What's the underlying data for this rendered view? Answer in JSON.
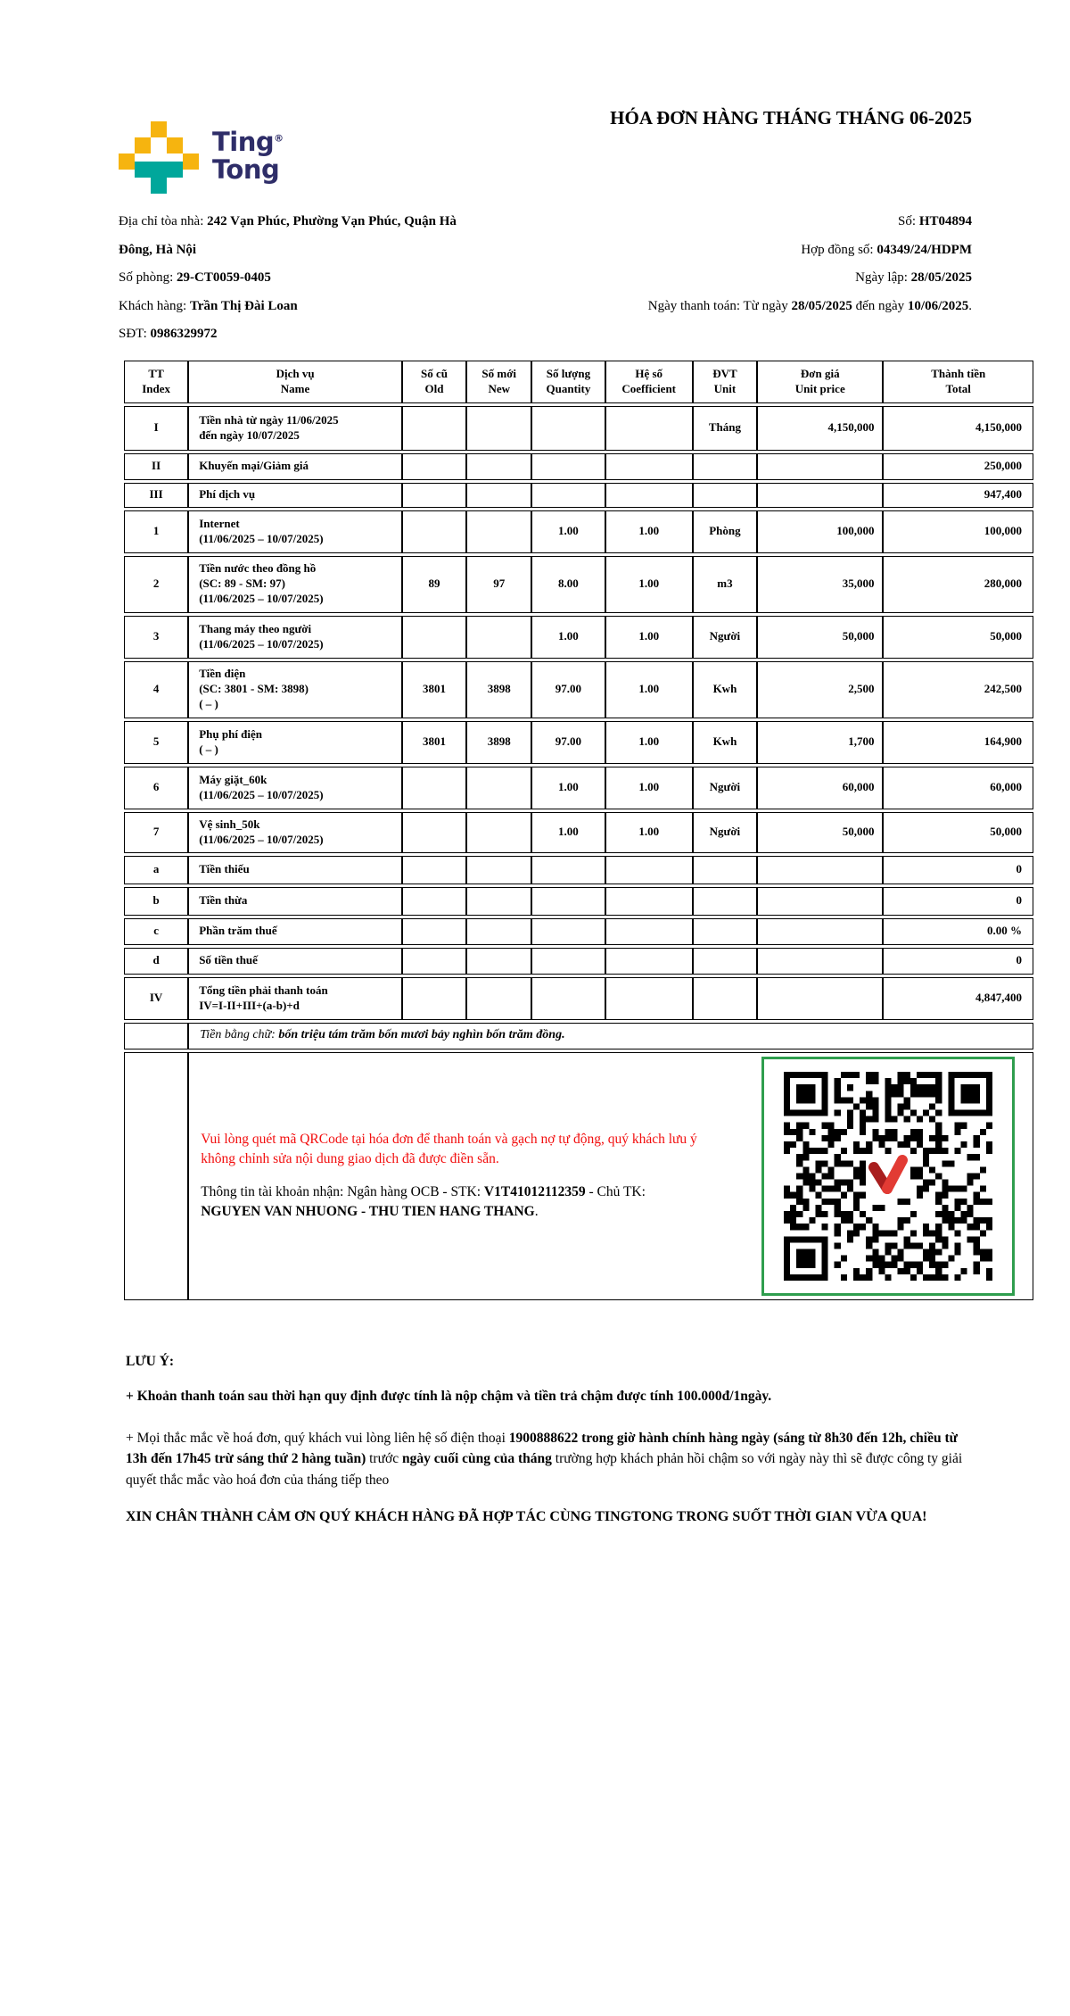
{
  "colors": {
    "brand_yellow": "#F6B40F",
    "brand_teal": "#00A79B",
    "brand_navy": "#2E2D68",
    "alert_red": "#F20D0D",
    "qr_border_green": "#2F9E4E",
    "qr_v_red": "#E23B34",
    "qr_v_dark_red": "#A81E1E"
  },
  "logo": {
    "text_line1": "Ting",
    "text_line2": "Tong",
    "registered_mark": "®"
  },
  "title": "HÓA ĐƠN HÀNG THÁNG THÁNG 06-2025",
  "info_left": [
    [
      {
        "t": "Địa chỉ tòa nhà: "
      },
      {
        "t": "242 Vạn Phúc, Phường Vạn Phúc, Quận Hà Đông, Hà Nội",
        "b": true
      }
    ],
    [
      {
        "t": "Số phòng: "
      },
      {
        "t": "29-CT0059-0405",
        "b": true
      }
    ],
    [
      {
        "t": "Khách hàng: "
      },
      {
        "t": "Trần Thị Đài Loan",
        "b": true
      }
    ],
    [
      {
        "t": "SĐT: "
      },
      {
        "t": "0986329972",
        "b": true
      }
    ]
  ],
  "info_right": [
    [
      {
        "t": "Số: "
      },
      {
        "t": "HT04894",
        "b": true
      }
    ],
    [
      {
        "t": "Hợp đồng số: "
      },
      {
        "t": "04349/24/HDPM",
        "b": true
      }
    ],
    [
      {
        "t": "Ngày lập: "
      },
      {
        "t": "28/05/2025",
        "b": true
      }
    ],
    [
      {
        "t": "Ngày thanh toán: Từ ngày "
      },
      {
        "t": "28/05/2025",
        "b": true
      },
      {
        "t": " đến ngày "
      },
      {
        "t": "10/06/2025",
        "b": true
      },
      {
        "t": "."
      }
    ]
  ],
  "table": {
    "headers": [
      [
        "TT",
        "Index"
      ],
      [
        "Dịch vụ",
        "Name"
      ],
      [
        "Số cũ",
        "Old"
      ],
      [
        "Số mới",
        "New"
      ],
      [
        "Số lượng",
        "Quantity"
      ],
      [
        "Hệ số",
        "Coefficient"
      ],
      [
        "ĐVT",
        "Unit"
      ],
      [
        "Đơn giá",
        "Unit price"
      ],
      [
        "Thành tiền",
        "Total"
      ]
    ],
    "rows": [
      {
        "tt": "I",
        "name": [
          "Tiền nhà từ ngày 11/06/2025",
          "đến ngày 10/07/2025"
        ],
        "old": "",
        "new": "",
        "qty": "",
        "coef": "",
        "unit": "Tháng",
        "price": "4,150,000",
        "total": "4,150,000"
      },
      {
        "tt": "II",
        "name": [
          "Khuyến mại/Giảm giá"
        ],
        "old": "",
        "new": "",
        "qty": "",
        "coef": "",
        "unit": "",
        "price": "",
        "total": "250,000"
      },
      {
        "tt": "III",
        "name": [
          "Phí dịch vụ"
        ],
        "old": "",
        "new": "",
        "qty": "",
        "coef": "",
        "unit": "",
        "price": "",
        "total": "947,400"
      },
      {
        "tt": "1",
        "name": [
          "Internet",
          "(11/06/2025 – 10/07/2025)"
        ],
        "old": "",
        "new": "",
        "qty": "1.00",
        "coef": "1.00",
        "unit": "Phòng",
        "price": "100,000",
        "total": "100,000"
      },
      {
        "tt": "2",
        "name": [
          "Tiền nước theo đồng hồ",
          "(SC: 89 - SM: 97)",
          "(11/06/2025 – 10/07/2025)"
        ],
        "old": "89",
        "new": "97",
        "qty": "8.00",
        "coef": "1.00",
        "unit": "m3",
        "price": "35,000",
        "total": "280,000"
      },
      {
        "tt": "3",
        "name": [
          "Thang máy theo người",
          "(11/06/2025 – 10/07/2025)"
        ],
        "old": "",
        "new": "",
        "qty": "1.00",
        "coef": "1.00",
        "unit": "Người",
        "price": "50,000",
        "total": "50,000"
      },
      {
        "tt": "4",
        "name": [
          "Tiền điện",
          "(SC: 3801 - SM: 3898)",
          "( – )"
        ],
        "old": "3801",
        "new": "3898",
        "qty": "97.00",
        "coef": "1.00",
        "unit": "Kwh",
        "price": "2,500",
        "total": "242,500"
      },
      {
        "tt": "5",
        "name": [
          "Phụ phí điện",
          "( – )"
        ],
        "old": "3801",
        "new": "3898",
        "qty": "97.00",
        "coef": "1.00",
        "unit": "Kwh",
        "price": "1,700",
        "total": "164,900"
      },
      {
        "tt": "6",
        "name": [
          "Máy giặt_60k",
          "(11/06/2025 – 10/07/2025)"
        ],
        "old": "",
        "new": "",
        "qty": "1.00",
        "coef": "1.00",
        "unit": "Người",
        "price": "60,000",
        "total": "60,000"
      },
      {
        "tt": "7",
        "name": [
          "Vệ sinh_50k",
          "(11/06/2025 – 10/07/2025)"
        ],
        "old": "",
        "new": "",
        "qty": "1.00",
        "coef": "1.00",
        "unit": "Người",
        "price": "50,000",
        "total": "50,000"
      },
      {
        "tt": "a",
        "name": [
          "Tiền thiếu"
        ],
        "old": "",
        "new": "",
        "qty": "",
        "coef": "",
        "unit": "",
        "price": "",
        "total": "0"
      },
      {
        "tt": "b",
        "name": [
          "Tiền thừa"
        ],
        "old": "",
        "new": "",
        "qty": "",
        "coef": "",
        "unit": "",
        "price": "",
        "total": "0"
      },
      {
        "tt": "c",
        "name": [
          "Phần trăm thuế"
        ],
        "old": "",
        "new": "",
        "qty": "",
        "coef": "",
        "unit": "",
        "price": "",
        "total": "0.00 %"
      },
      {
        "tt": "d",
        "name": [
          "Số tiền thuế"
        ],
        "old": "",
        "new": "",
        "qty": "",
        "coef": "",
        "unit": "",
        "price": "",
        "total": "0"
      },
      {
        "tt": "IV",
        "name": [
          "Tổng tiền phải thanh toán",
          "IV=I-II+III+(a-b)+d"
        ],
        "old": "",
        "new": "",
        "qty": "",
        "coef": "",
        "unit": "",
        "price": "",
        "total": "4,847,400"
      }
    ],
    "amount_in_words_label": "Tiền bằng chữ: ",
    "amount_in_words_value": "bốn triệu tám trăm bốn mươi bảy nghìn bốn trăm đồng."
  },
  "payment": {
    "qr_note_red": "Vui lòng quét mã QRCode tại hóa đơn để thanh toán và gạch nợ tự động, quý khách lưu ý không chỉnh sửa nội dung giao dịch đã được điền sẵn.",
    "account_runs": [
      {
        "t": "Thông tin tài khoản nhận: Ngân hàng OCB - STK: "
      },
      {
        "t": "V1T41012112359",
        "b": true
      },
      {
        "t": " - Chủ TK:"
      },
      {
        "br": true
      },
      {
        "t": "NGUYEN VAN NHUONG - THU TIEN HANG THANG",
        "b": true
      },
      {
        "t": "."
      }
    ]
  },
  "notes": {
    "heading": "LƯU Ý:",
    "bullet1": "+ Khoản thanh toán sau thời hạn quy định được tính là nộp chậm và tiền trả chậm được tính 100.000đ/1ngày.",
    "bullet2_runs": [
      {
        "t": "+ Mọi thắc mắc về hoá đơn, quý khách vui lòng liên hệ số điện thoại "
      },
      {
        "t": "1900888622 trong giờ hành chính hàng ngày (sáng từ 8h30 đến 12h, chiều từ 13h đến 17h45 trừ sáng thứ 2 hàng tuần)",
        "b": true
      },
      {
        "t": " trước "
      },
      {
        "t": "ngày cuối cùng của tháng",
        "b": true
      },
      {
        "t": " trường hợp khách phản hồi chậm so với ngày này thì sẽ được công ty giải quyết thắc mắc vào hoá đơn của tháng tiếp theo"
      }
    ],
    "closing": "XIN CHÂN THÀNH CẢM ƠN QUÝ KHÁCH HÀNG ĐÃ HỢP TÁC CÙNG TINGTONG TRONG SUỐT THỜI GIAN VỪA QUA!"
  }
}
